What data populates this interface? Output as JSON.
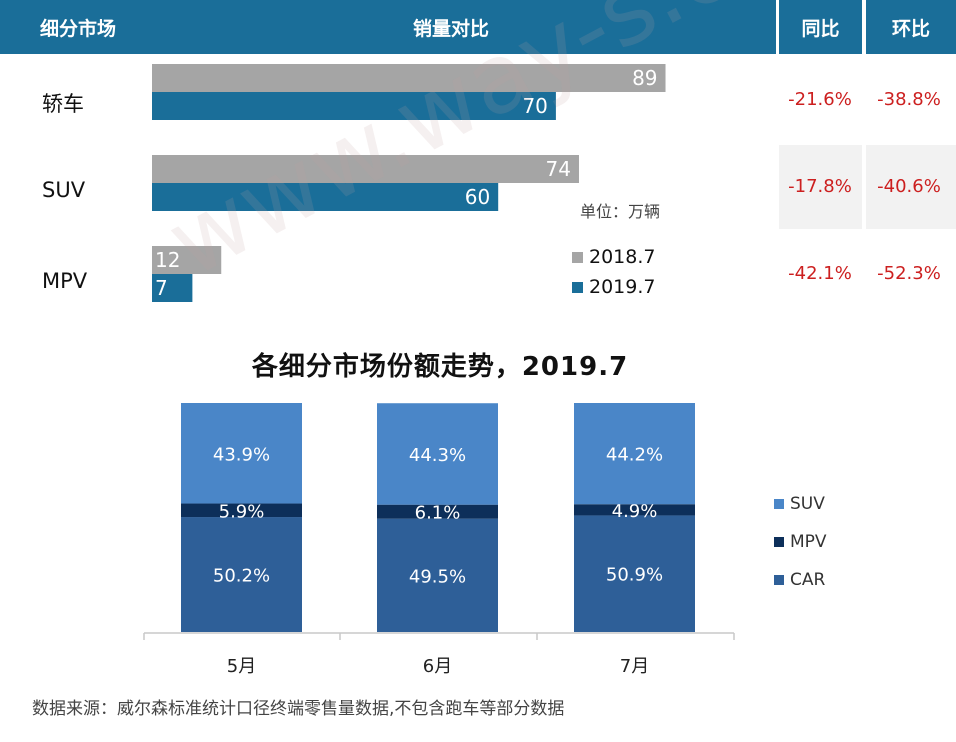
{
  "header": {
    "segment": "细分市场",
    "comparison": "销量对比",
    "yoy": "同比",
    "mom": "环比"
  },
  "unit": "单位：万辆",
  "legend_top": [
    {
      "label": "2018.7",
      "color": "#a5a5a5"
    },
    {
      "label": "2019.7",
      "color": "#1a6e99"
    }
  ],
  "rows": [
    {
      "label": "轿车",
      "yoy": "-21.6%",
      "mom": "-38.8%"
    },
    {
      "label": "SUV",
      "yoy": "-17.8%",
      "mom": "-40.6%"
    },
    {
      "label": "MPV",
      "yoy": "-42.1%",
      "mom": "-52.3%"
    }
  ],
  "chart_title": "各细分市场份额走势，2019.7",
  "legend_bottom": [
    {
      "label": "SUV",
      "color": "#4a86c8"
    },
    {
      "label": "MPV",
      "color": "#0d2f5a"
    },
    {
      "label": "CAR",
      "color": "#2e5f98"
    }
  ],
  "source": "数据来源：威尔森标准统计口径终端零售量数据,不包含跑车等部分数据",
  "watermark": "www.way-s.cn",
  "chart_data": [
    {
      "type": "bar",
      "orientation": "horizontal",
      "categories": [
        "轿车",
        "SUV",
        "MPV"
      ],
      "series": [
        {
          "name": "2018.7",
          "values": [
            89,
            74,
            12
          ],
          "color": "#a5a5a5"
        },
        {
          "name": "2019.7",
          "values": [
            70,
            60,
            7
          ],
          "color": "#1a6e99"
        }
      ],
      "xlim": [
        0,
        100
      ],
      "unit": "万辆"
    },
    {
      "type": "bar",
      "stacked": true,
      "title": "各细分市场份额走势，2019.7",
      "categories": [
        "5月",
        "6月",
        "7月"
      ],
      "series": [
        {
          "name": "CAR",
          "values": [
            50.2,
            49.5,
            50.9
          ],
          "labels": [
            "50.2%",
            "49.5%",
            "50.9%"
          ],
          "color": "#2e5f98"
        },
        {
          "name": "MPV",
          "values": [
            5.9,
            6.1,
            4.9
          ],
          "labels": [
            "5.9%",
            "6.1%",
            "4.9%"
          ],
          "color": "#0d2f5a"
        },
        {
          "name": "SUV",
          "values": [
            43.9,
            44.3,
            44.2
          ],
          "labels": [
            "43.9%",
            "44.3%",
            "44.2%"
          ],
          "color": "#4a86c8"
        }
      ],
      "ylim": [
        0,
        100
      ]
    }
  ]
}
